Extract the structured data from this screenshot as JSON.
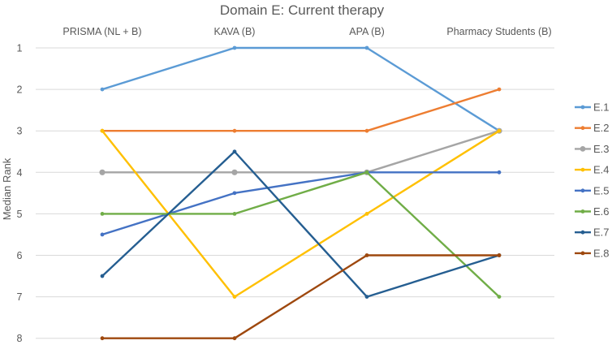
{
  "chart_data": {
    "type": "line",
    "title": "Domain E: Current therapy",
    "xlabel": "",
    "ylabel": "Median Rank",
    "categories": [
      "PRISMA (NL + B)",
      "KAVA (B)",
      "APA (B)",
      "Pharmacy Students (B)"
    ],
    "ylim": [
      1,
      8
    ],
    "y_inverted": true,
    "y_ticks": [
      "1",
      "2",
      "3",
      "4",
      "5",
      "6",
      "7",
      "8"
    ],
    "grid": true,
    "legend_position": "right",
    "series": [
      {
        "name": "E.1",
        "color": "#5b9bd5",
        "values": [
          2,
          1,
          1,
          3
        ]
      },
      {
        "name": "E.2",
        "color": "#ed7d31",
        "values": [
          3,
          3,
          3,
          2
        ]
      },
      {
        "name": "E.3",
        "color": "#a5a5a5",
        "values": [
          4,
          4,
          4,
          3
        ]
      },
      {
        "name": "E.4",
        "color": "#ffc000",
        "values": [
          3,
          7,
          5,
          3
        ]
      },
      {
        "name": "E.5",
        "color": "#4472c4",
        "values": [
          5.5,
          4.5,
          4,
          4
        ]
      },
      {
        "name": "E.6",
        "color": "#70ad47",
        "values": [
          5,
          5,
          4,
          7
        ]
      },
      {
        "name": "E.7",
        "color": "#255e91",
        "values": [
          6.5,
          3.5,
          7,
          6
        ]
      },
      {
        "name": "E.8",
        "color": "#9e480e",
        "values": [
          8,
          8,
          6,
          6
        ]
      }
    ]
  }
}
